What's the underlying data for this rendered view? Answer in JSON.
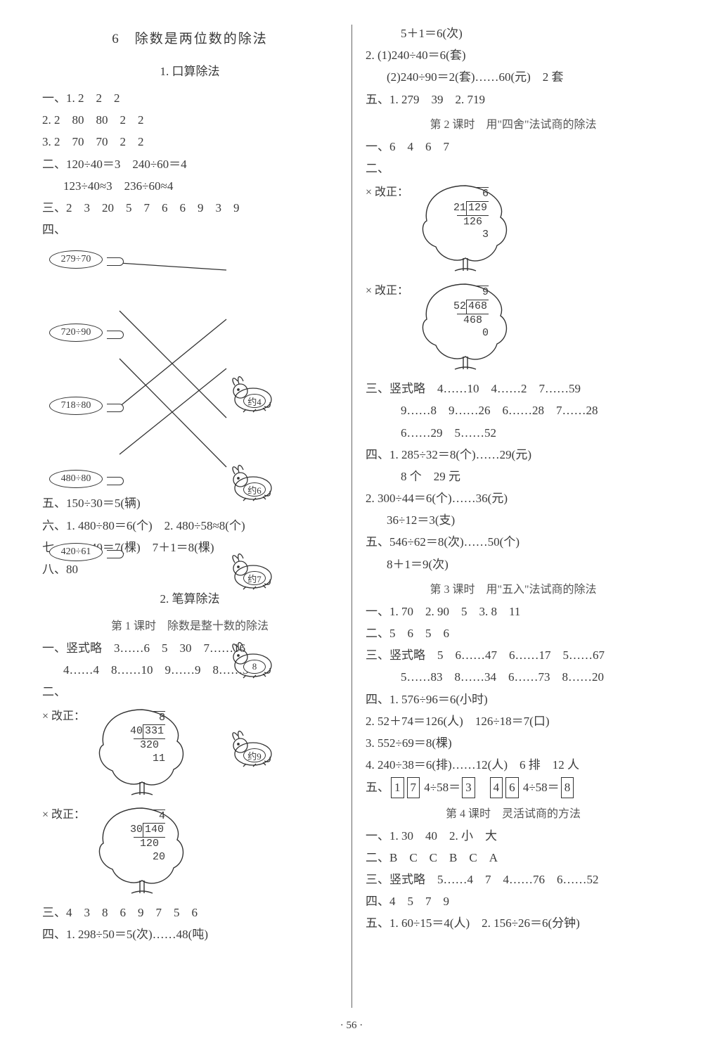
{
  "page_number": "· 56 ·",
  "left": {
    "chapter": "6　除数是两位数的除法",
    "s1": {
      "title": "1. 口算除法",
      "l1": "一、1. 2　2　2",
      "l2": "2. 2　80　80　2　2",
      "l3": "3. 2　70　70　2　2",
      "l4": "二、120÷40＝3　240÷60＝4",
      "l5": "123÷40≈3　236÷60≈4",
      "l6": "三、2　3　20　5　7　6　6　9　3　9",
      "l7": "四、",
      "match": {
        "left_items": [
          "279÷70",
          "720÷90",
          "718÷80",
          "480÷80",
          "420÷61"
        ],
        "right_items": [
          "约4",
          "约6",
          "约7",
          "8",
          "约9"
        ],
        "connections": [
          [
            0,
            0
          ],
          [
            1,
            3
          ],
          [
            2,
            4
          ],
          [
            3,
            1
          ],
          [
            4,
            2
          ]
        ]
      },
      "l8": "五、150÷30＝5(辆)",
      "l9": "六、1. 480÷80＝6(个)　2. 480÷58≈8(个)",
      "l10": "七、280÷40＝7(棵)　7＋1＝8(棵)",
      "l11": "八、80"
    },
    "s2": {
      "title": "2. 笔算除法",
      "k1": {
        "title": "第 1 课时　除数是整十数的除法",
        "l1": "一、竖式略　3……6　5　30　7……16",
        "l2": "4……4　8……10　9……9　8……3",
        "l3": "二、",
        "tree1": {
          "prefix": "× 改正：",
          "divisor": "40",
          "dividend": "331",
          "quotient": "8",
          "sub": "320",
          "rem": "11"
        },
        "tree2": {
          "prefix": "× 改正：",
          "divisor": "30",
          "dividend": "140",
          "quotient": "4",
          "sub": "120",
          "rem": "20"
        },
        "l4": "三、4　3　8　6　9　7　5　6",
        "l5": "四、1. 298÷50＝5(次)……48(吨)"
      }
    }
  },
  "right": {
    "r1": "5＋1＝6(次)",
    "r2": "2. (1)240÷40＝6(套)",
    "r3": "(2)240÷90＝2(套)……60(元)　2 套",
    "r4": "五、1. 279　39　2. 719",
    "k2": {
      "title": "第 2 课时　用\"四舍\"法试商的除法",
      "l1": "一、6　4　6　7",
      "l2": "二、",
      "tree1": {
        "prefix": "× 改正：",
        "divisor": "21",
        "dividend": "129",
        "quotient": "6",
        "sub": "126",
        "rem": "3"
      },
      "tree2": {
        "prefix": "× 改正：",
        "divisor": "52",
        "dividend": "468",
        "quotient": "9",
        "sub": "468",
        "rem": "0"
      },
      "l3": "三、竖式略　4……10　4……2　7……59",
      "l3b": "9……8　9……26　6……28　7……28",
      "l3c": "6……29　5……52",
      "l4": "四、1. 285÷32＝8(个)……29(元)",
      "l4b": "8 个　29 元",
      "l5": "2. 300÷44＝6(个)……36(元)",
      "l5b": "36÷12＝3(支)",
      "l6": "五、546÷62＝8(次)……50(个)",
      "l6b": "8＋1＝9(次)"
    },
    "k3": {
      "title": "第 3 课时　用\"五入\"法试商的除法",
      "l1": "一、1. 70　2. 90　5　3. 8　11",
      "l2": "二、5　6　5　6",
      "l3": "三、竖式略　5　6……47　6……17　5……67",
      "l3b": "5……83　8……34　6……73　8……20",
      "l4": "四、1. 576÷96＝6(小时)",
      "l5": "2. 52＋74＝126(人)　126÷18＝7(口)",
      "l6": "3. 552÷69＝8(棵)",
      "l7": "4. 240÷38＝6(排)……12(人)　6 排　12 人",
      "l8a": "五、",
      "l8b1": "1",
      "l8b2": "7",
      "l8c": " 4÷58＝",
      "l8d": "3",
      "l8e": "　",
      "l8f1": "4",
      "l8f2": "6",
      "l8g": " 4÷58＝",
      "l8h": "8"
    },
    "k4": {
      "title": "第 4 课时　灵活试商的方法",
      "l1": "一、1. 30　40　2. 小　大",
      "l2": "二、B　C　C　B　C　A",
      "l3": "三、竖式略　5……4　7　4……76　6……52",
      "l4": "四、4　5　7　9",
      "l5": "五、1. 60÷15＝4(人)　2. 156÷26＝6(分钟)"
    }
  }
}
